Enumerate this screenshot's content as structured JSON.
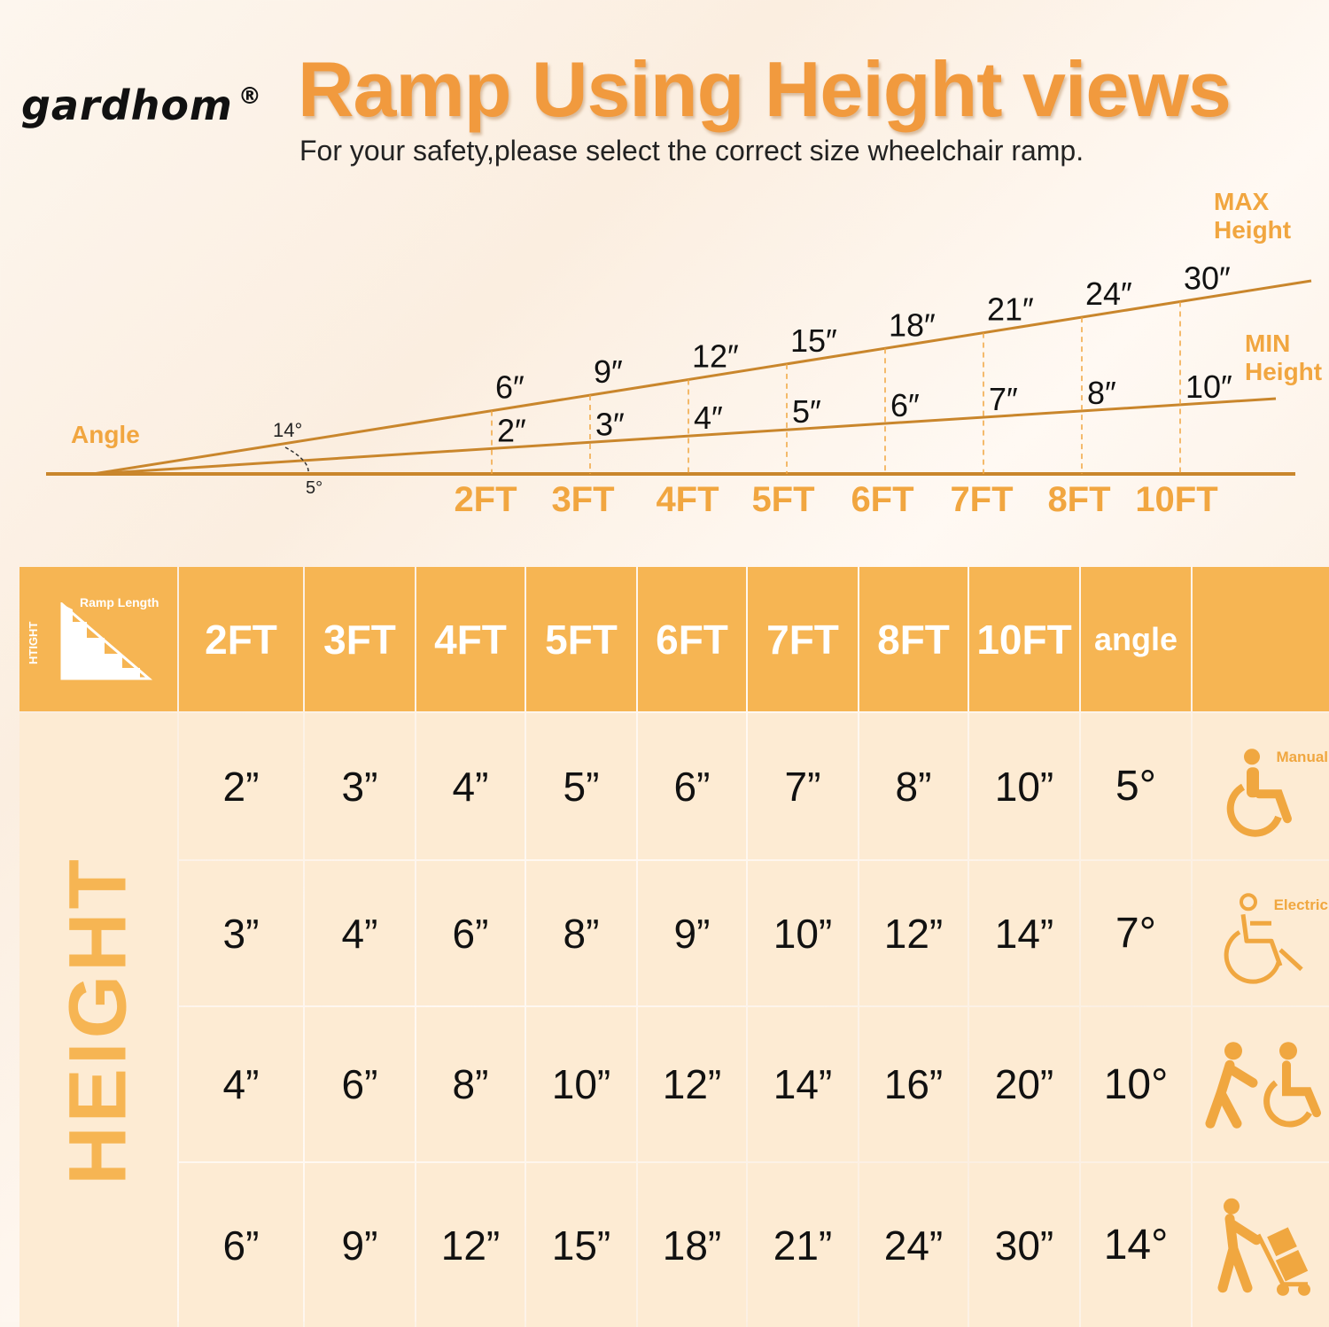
{
  "brand": {
    "name": "gardhom",
    "mark": "®"
  },
  "header": {
    "title": "Ramp Using Height views",
    "subtitle": "For your safety,please select the correct size wheelchair ramp."
  },
  "diagram": {
    "angle_label": "Angle",
    "max_angle": "14°",
    "min_angle": "5°",
    "max_label": [
      "MAX",
      "Height"
    ],
    "min_label": [
      "MIN",
      "Height"
    ],
    "lengths": [
      "2FT",
      "3FT",
      "4FT",
      "5FT",
      "6FT",
      "7FT",
      "8FT",
      "10FT"
    ],
    "max_heights": [
      "6″",
      "9″",
      "12″",
      "15″",
      "18″",
      "21″",
      "24″",
      "30″"
    ],
    "min_heights": [
      "2″",
      "3″",
      "4″",
      "5″",
      "6″",
      "7″",
      "8″",
      "10″"
    ],
    "colors": {
      "line": "#c9862c",
      "label": "#f1a640"
    }
  },
  "table": {
    "corner": {
      "ramp_length": "Ramp Length",
      "height": "HTIGHT"
    },
    "columns": [
      "2FT",
      "3FT",
      "4FT",
      "5FT",
      "6FT",
      "7FT",
      "8FT",
      "10FT",
      "angle"
    ],
    "side_label": "HEIGHT",
    "rows": [
      {
        "values": [
          "2”",
          "3”",
          "4”",
          "5”",
          "6”",
          "7”",
          "8”",
          "10”",
          "5°"
        ],
        "icon": "manual-wheelchair-icon",
        "icon_label": "Manual"
      },
      {
        "values": [
          "3”",
          "4”",
          "6”",
          "8”",
          "9”",
          "10”",
          "12”",
          "14”",
          "7°"
        ],
        "icon": "electric-wheelchair-icon",
        "icon_label": "Electric"
      },
      {
        "values": [
          "4”",
          "6”",
          "8”",
          "10”",
          "12”",
          "14”",
          "16”",
          "20”",
          "10°"
        ],
        "icon": "assisted-wheelchair-icon",
        "icon_label": ""
      },
      {
        "values": [
          "6”",
          "9”",
          "12”",
          "15”",
          "18”",
          "21”",
          "24”",
          "30”",
          "14°"
        ],
        "icon": "hand-truck-icon",
        "icon_label": ""
      }
    ],
    "colors": {
      "header": "#f6b553",
      "body": "#fdebd3"
    }
  }
}
